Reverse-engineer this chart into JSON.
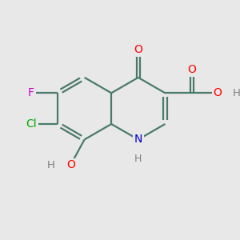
{
  "bg_color": "#e8e8e8",
  "atom_colors": {
    "C": "#000000",
    "N": "#0000cd",
    "O": "#ff0000",
    "F": "#cc00cc",
    "Cl": "#00aa00",
    "H": "#808080"
  },
  "bond_color": "#4a7a6a",
  "figsize": [
    3.0,
    3.0
  ],
  "dpi": 100,
  "bond_lw": 1.6
}
